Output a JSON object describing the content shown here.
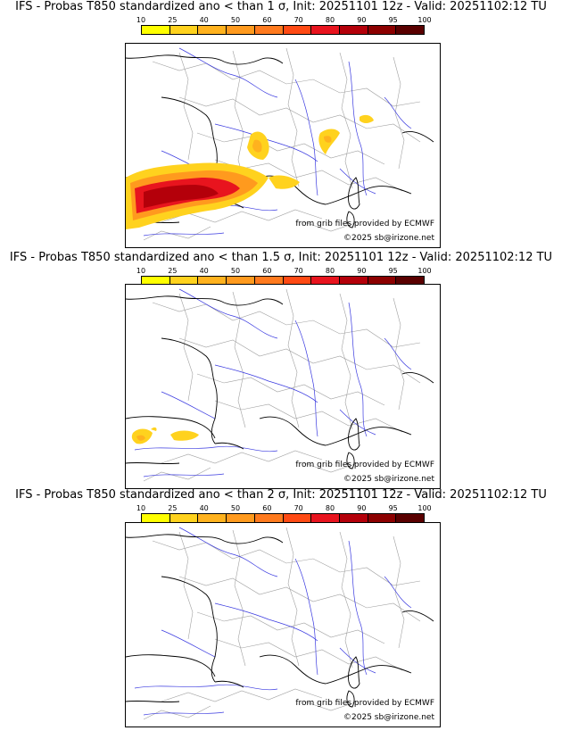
{
  "colorbar": {
    "ticks": [
      "10",
      "25",
      "40",
      "50",
      "60",
      "70",
      "80",
      "90",
      "95",
      "100"
    ],
    "colors": [
      "#ffff00",
      "#ffd21e",
      "#ffb21e",
      "#ff9a1e",
      "#ff7a1e",
      "#ff4a14",
      "#e8141e",
      "#b4000a",
      "#8c0000",
      "#5a0000"
    ]
  },
  "panels": [
    {
      "title": "IFS - Probas T850  standardized ano < than 1 σ, Init: 20251101 12z - Valid: 20251102:12 TU",
      "source_credit": "from grib files provided by ECMWF",
      "copyright": "©2025 sb@irizone.net"
    },
    {
      "title": "IFS - Probas T850  standardized ano < than 1.5 σ, Init: 20251101 12z - Valid: 20251102:12 TU",
      "source_credit": "from grib files provided by ECMWF",
      "copyright": "©2025 sb@irizone.net"
    },
    {
      "title": "IFS - Probas T850  standardized ano < than 2 σ, Init: 20251101 12z - Valid: 20251102:12 TU",
      "source_credit": "from grib files provided by ECMWF",
      "copyright": "©2025 sb@irizone.net"
    }
  ],
  "style": {
    "coast_color": "#000000",
    "river_color": "#3a3ae0",
    "border_color": "#a0a0a0"
  }
}
